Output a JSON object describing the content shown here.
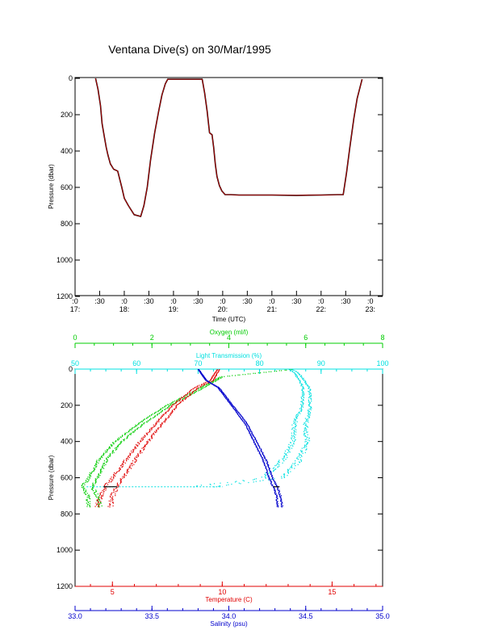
{
  "title": "Ventana Dive(s) on 30/Mar/1995",
  "colors": {
    "axes": "#000000",
    "oxygen": "#00cc00",
    "transmission": "#00e0e0",
    "temperature": "#e00000",
    "salinity": "#0000cc",
    "dive_track": "#cc0000"
  },
  "chart_data": [
    {
      "type": "line",
      "title": "Ventana Dive(s) on 30/Mar/1995",
      "xlabel": "Time (UTC)",
      "ylabel": "Pressure (dbar)",
      "x_ticks": [
        {
          "top": ":0",
          "bottom": "17:"
        },
        {
          "top": ":30",
          "bottom": ""
        },
        {
          "top": ":0",
          "bottom": "18:"
        },
        {
          "top": ":30",
          "bottom": ""
        },
        {
          "top": ":0",
          "bottom": "19:"
        },
        {
          "top": ":30",
          "bottom": ""
        },
        {
          "top": ":0",
          "bottom": "20:"
        },
        {
          "top": ":30",
          "bottom": ""
        },
        {
          "top": ":0",
          "bottom": "21:"
        },
        {
          "top": ":30",
          "bottom": ""
        },
        {
          "top": ":0",
          "bottom": "22:"
        },
        {
          "top": ":30",
          "bottom": ""
        },
        {
          "top": ":0",
          "bottom": "23:"
        }
      ],
      "xlim_minutes_after_1700": [
        0,
        375
      ],
      "ylim": [
        1200,
        0
      ],
      "y_ticks": [
        "0",
        "200",
        "400",
        "600",
        "800",
        "1000",
        "1200"
      ],
      "series": [
        {
          "x_time": [
            "17:25",
            "17:28",
            "17:31",
            "17:33",
            "17:36",
            "17:38",
            "17:40",
            "17:43",
            "17:47",
            "17:52",
            "17:57",
            "18:00",
            "18:05",
            "18:12",
            "18:20",
            "18:24",
            "18:28",
            "18:32",
            "18:37",
            "18:42",
            "18:46",
            "18:50",
            "18:53",
            "19:00",
            "19:20",
            "19:35",
            "19:38",
            "19:41",
            "19:44",
            "19:47",
            "19:49",
            "19:51",
            "19:53",
            "19:56",
            "19:59",
            "20:03",
            "20:10",
            "20:20",
            "21:00",
            "21:30",
            "22:00",
            "22:20",
            "22:27",
            "22:31",
            "22:35",
            "22:40",
            "22:44",
            "22:50"
          ],
          "pressure": [
            0,
            60,
            150,
            250,
            330,
            380,
            420,
            470,
            500,
            510,
            600,
            660,
            700,
            750,
            760,
            700,
            600,
            450,
            300,
            180,
            90,
            30,
            5,
            5,
            5,
            5,
            80,
            180,
            300,
            310,
            380,
            470,
            540,
            590,
            620,
            640,
            640,
            642,
            642,
            644,
            642,
            640,
            640,
            520,
            380,
            220,
            110,
            5
          ]
        }
      ]
    },
    {
      "type": "scatter",
      "ylabel": "Pressure (dbar)",
      "ylim": [
        1200,
        0
      ],
      "y_ticks": [
        "0",
        "200",
        "400",
        "600",
        "800",
        "1000",
        "1200"
      ],
      "axes": {
        "oxygen": {
          "label": "Oxygen (ml/l)",
          "range": [
            0,
            8
          ],
          "ticks": [
            "0",
            "2",
            "4",
            "6",
            "8"
          ]
        },
        "transmission": {
          "label": "Light Transmission (%)",
          "range": [
            50,
            100
          ],
          "ticks": [
            "50",
            "60",
            "70",
            "80",
            "90",
            "100"
          ]
        },
        "temperature": {
          "label": "Temperature (C)",
          "range": [
            3.3,
            17.3
          ],
          "ticks": [
            "5",
            "10",
            "15"
          ]
        },
        "salinity": {
          "label": "Salinity (psu)",
          "range": [
            33.0,
            35.0
          ],
          "ticks": [
            "33.0",
            "33.5",
            "34.0",
            "34.5",
            "35.0"
          ]
        }
      },
      "series": [
        {
          "param": "oxygen",
          "depth": [
            0,
            40,
            100,
            200,
            300,
            400,
            500,
            600,
            650,
            700,
            760
          ],
          "values": [
            5.6,
            3.8,
            3.3,
            2.4,
            1.7,
            1.1,
            0.7,
            0.45,
            0.3,
            0.45,
            0.5
          ]
        },
        {
          "param": "transmission",
          "depth": [
            0,
            20,
            100,
            200,
            300,
            400,
            500,
            600,
            650
          ],
          "values": [
            85,
            86,
            87.5,
            87.5,
            86.5,
            86.5,
            85,
            82,
            70
          ]
        },
        {
          "param": "temperature",
          "depth": [
            0,
            60,
            100,
            200,
            300,
            400,
            500,
            600,
            650,
            700,
            760
          ],
          "values": [
            9.8,
            9.5,
            8.8,
            7.8,
            7.1,
            6.4,
            5.8,
            5.2,
            4.9,
            4.7,
            4.6
          ]
        },
        {
          "param": "salinity",
          "depth": [
            0,
            60,
            100,
            200,
            300,
            400,
            500,
            600,
            650,
            700,
            760
          ],
          "values": [
            33.8,
            33.85,
            33.93,
            34.02,
            34.11,
            34.17,
            34.23,
            34.27,
            34.3,
            34.32,
            34.33
          ]
        }
      ]
    }
  ]
}
